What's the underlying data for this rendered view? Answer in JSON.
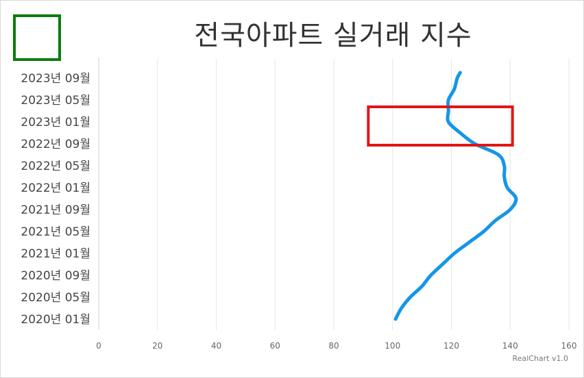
{
  "chart_data": {
    "type": "line",
    "orientation": "horizontal",
    "title": "전국아파트 실거래 지수",
    "credit": "RealChart v1.0",
    "categories": [
      "2020년 01월",
      "2020년 05월",
      "2020년 09월",
      "2021년 01월",
      "2021년 05월",
      "2021년 09월",
      "2022년 01월",
      "2022년 05월",
      "2022년 09월",
      "2023년 01월",
      "2023년 05월",
      "2023년 09월"
    ],
    "x_ticks": [
      0,
      20,
      40,
      60,
      80,
      100,
      120,
      140,
      160
    ],
    "xlim": [
      0,
      160
    ],
    "grid": true,
    "series": [
      {
        "color": "#1596e8",
        "points": [
          {
            "month": "2020년 01월",
            "value": 101
          },
          {
            "month": "2020년 03월",
            "value": 103
          },
          {
            "month": "2020년 05월",
            "value": 106
          },
          {
            "month": "2020년 07월",
            "value": 110
          },
          {
            "month": "2020년 09월",
            "value": 113
          },
          {
            "month": "2020년 11월",
            "value": 117
          },
          {
            "month": "2021년 01월",
            "value": 121
          },
          {
            "month": "2021년 03월",
            "value": 126
          },
          {
            "month": "2021년 05월",
            "value": 131
          },
          {
            "month": "2021년 07월",
            "value": 135
          },
          {
            "month": "2021년 09월",
            "value": 140
          },
          {
            "month": "2021년 11월",
            "value": 142
          },
          {
            "month": "2022년 01월",
            "value": 139
          },
          {
            "month": "2022년 03월",
            "value": 138
          },
          {
            "month": "2022년 05월",
            "value": 138
          },
          {
            "month": "2022년 07월",
            "value": 136
          },
          {
            "month": "2022년 09월",
            "value": 128
          },
          {
            "month": "2022년 11월",
            "value": 123
          },
          {
            "month": "2023년 01월",
            "value": 119
          },
          {
            "month": "2023년 03월",
            "value": 119
          },
          {
            "month": "2023년 05월",
            "value": 119
          },
          {
            "month": "2023년 07월",
            "value": 121
          },
          {
            "month": "2023년 09월",
            "value": 122
          },
          {
            "month": "2023년 10월",
            "value": 123
          }
        ]
      }
    ],
    "annotations": [
      {
        "type": "box",
        "color": "#e31515",
        "x_range": [
          95,
          145
        ],
        "y_range": [
          "2023년 01월",
          "2022년 09월"
        ]
      }
    ],
    "marker_box_color": "#0a7d0a"
  }
}
